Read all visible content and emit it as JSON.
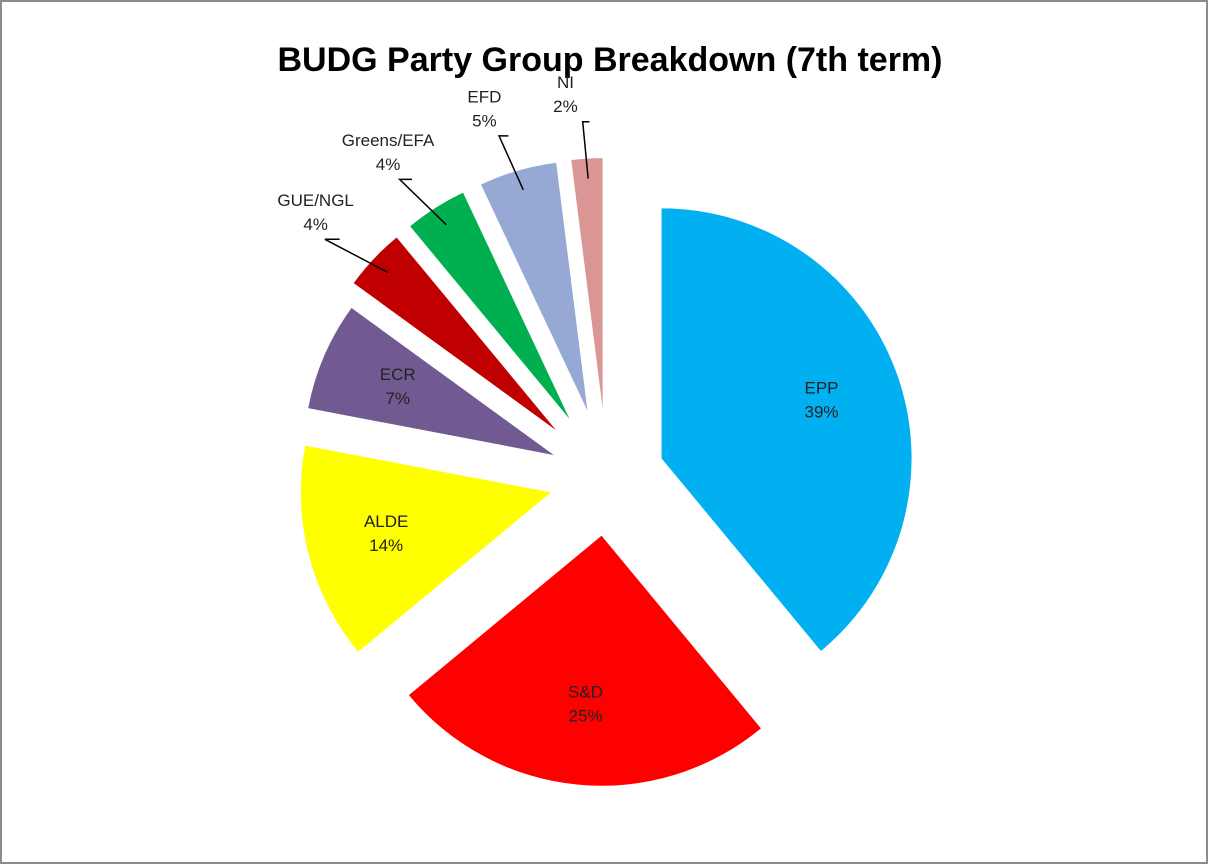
{
  "chart_data": {
    "type": "pie",
    "title": "BUDG Party Group Breakdown (7th term)",
    "categories": [
      "EPP",
      "S&D",
      "ALDE",
      "ECR",
      "GUE/NGL",
      "Greens/EFA",
      "EFD",
      "NI"
    ],
    "values": [
      39,
      25,
      14,
      7,
      4,
      4,
      5,
      2
    ],
    "value_labels": [
      "39%",
      "25%",
      "14%",
      "7%",
      "4%",
      "4%",
      "5%",
      "2%"
    ],
    "colors": [
      "#00b0f0",
      "#ff0000",
      "#ffff00",
      "#705a91",
      "#c00000",
      "#00b050",
      "#95a9d4",
      "#d99694"
    ]
  }
}
